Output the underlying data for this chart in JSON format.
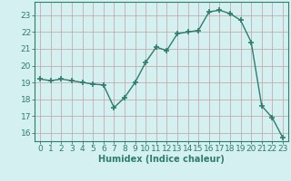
{
  "x": [
    0,
    1,
    2,
    3,
    4,
    5,
    6,
    7,
    8,
    9,
    10,
    11,
    12,
    13,
    14,
    15,
    16,
    17,
    18,
    19,
    20,
    21,
    22,
    23
  ],
  "y": [
    19.2,
    19.1,
    19.2,
    19.1,
    19.0,
    18.9,
    18.85,
    17.5,
    18.1,
    19.0,
    20.2,
    21.1,
    20.9,
    21.9,
    22.0,
    22.1,
    23.2,
    23.3,
    23.1,
    22.7,
    21.4,
    17.6,
    16.9,
    15.7
  ],
  "line_color": "#2e7d6e",
  "marker": "+",
  "marker_size": 4,
  "marker_lw": 1.2,
  "line_width": 1.0,
  "bg_color": "#d5f0f0",
  "grid_color": "#c0a0a0",
  "xlabel": "Humidex (Indice chaleur)",
  "xlim": [
    -0.5,
    23.5
  ],
  "ylim": [
    15.5,
    23.8
  ],
  "yticks": [
    16,
    17,
    18,
    19,
    20,
    21,
    22,
    23
  ],
  "xticks": [
    0,
    1,
    2,
    3,
    4,
    5,
    6,
    7,
    8,
    9,
    10,
    11,
    12,
    13,
    14,
    15,
    16,
    17,
    18,
    19,
    20,
    21,
    22,
    23
  ],
  "xlabel_fontsize": 7,
  "tick_fontsize": 6.5
}
